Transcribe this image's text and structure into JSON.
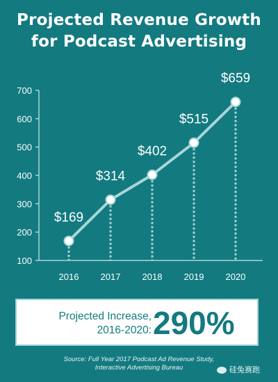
{
  "title": {
    "line1": "Projected Revenue Growth",
    "line2": "for Podcast Advertising"
  },
  "chart_data": {
    "type": "line",
    "title": "Projected Revenue Growth for Podcast Advertising",
    "x": [
      "2016",
      "2017",
      "2018",
      "2019",
      "2020"
    ],
    "values": [
      169,
      314,
      402,
      515,
      659
    ],
    "data_labels": [
      "$169",
      "$314",
      "$402",
      "$515",
      "$659"
    ],
    "ylim": [
      100,
      700
    ],
    "yticks": [
      100,
      200,
      300,
      400,
      500,
      600,
      700
    ],
    "grid": false,
    "colors": {
      "background": "#137a80",
      "line": "#a9d6d8",
      "marker_fill": "#ffffff",
      "axis": "#a9d6d8",
      "text": "#ffffff"
    }
  },
  "callout": {
    "label_line1": "Projected Increase,",
    "label_line2": "2016-2020:",
    "value": "290%"
  },
  "source": {
    "line1": "Source: Full Year 2017 Podcast Ad Revenue Study,",
    "line2": "Interactive Advertising Bureau"
  },
  "watermark": {
    "text": "硅兔赛跑"
  }
}
